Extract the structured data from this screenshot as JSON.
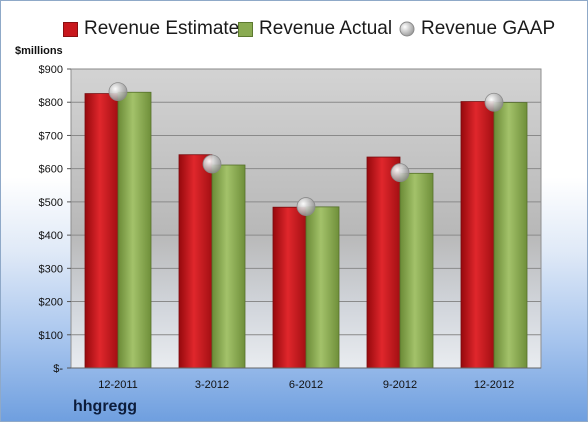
{
  "legend": {
    "estimate": "Revenue Estimate",
    "actual": "Revenue Actual",
    "gaap": "Revenue GAAP"
  },
  "units_label": "$millions",
  "company": "hhgregg",
  "colors": {
    "estimate": "#c8171d",
    "actual": "#8aab52",
    "gaap": "#c8c8c8"
  },
  "chart_data": {
    "type": "bar",
    "categories": [
      "12-2011",
      "3-2012",
      "6-2012",
      "9-2012",
      "12-2012"
    ],
    "series": [
      {
        "name": "Revenue Estimate",
        "values": [
          826,
          642,
          484,
          635,
          802
        ]
      },
      {
        "name": "Revenue Actual",
        "values": [
          830,
          611,
          485,
          586,
          799
        ]
      },
      {
        "name": "Revenue GAAP",
        "values": [
          832,
          614,
          486,
          588,
          800
        ]
      }
    ],
    "y_tick_labels": [
      "$-",
      "$100",
      "$200",
      "$300",
      "$400",
      "$500",
      "$600",
      "$700",
      "$800",
      "$900"
    ],
    "ylabel": "$millions",
    "ylim": [
      0,
      900
    ],
    "grid": true,
    "legend_position": "top"
  }
}
